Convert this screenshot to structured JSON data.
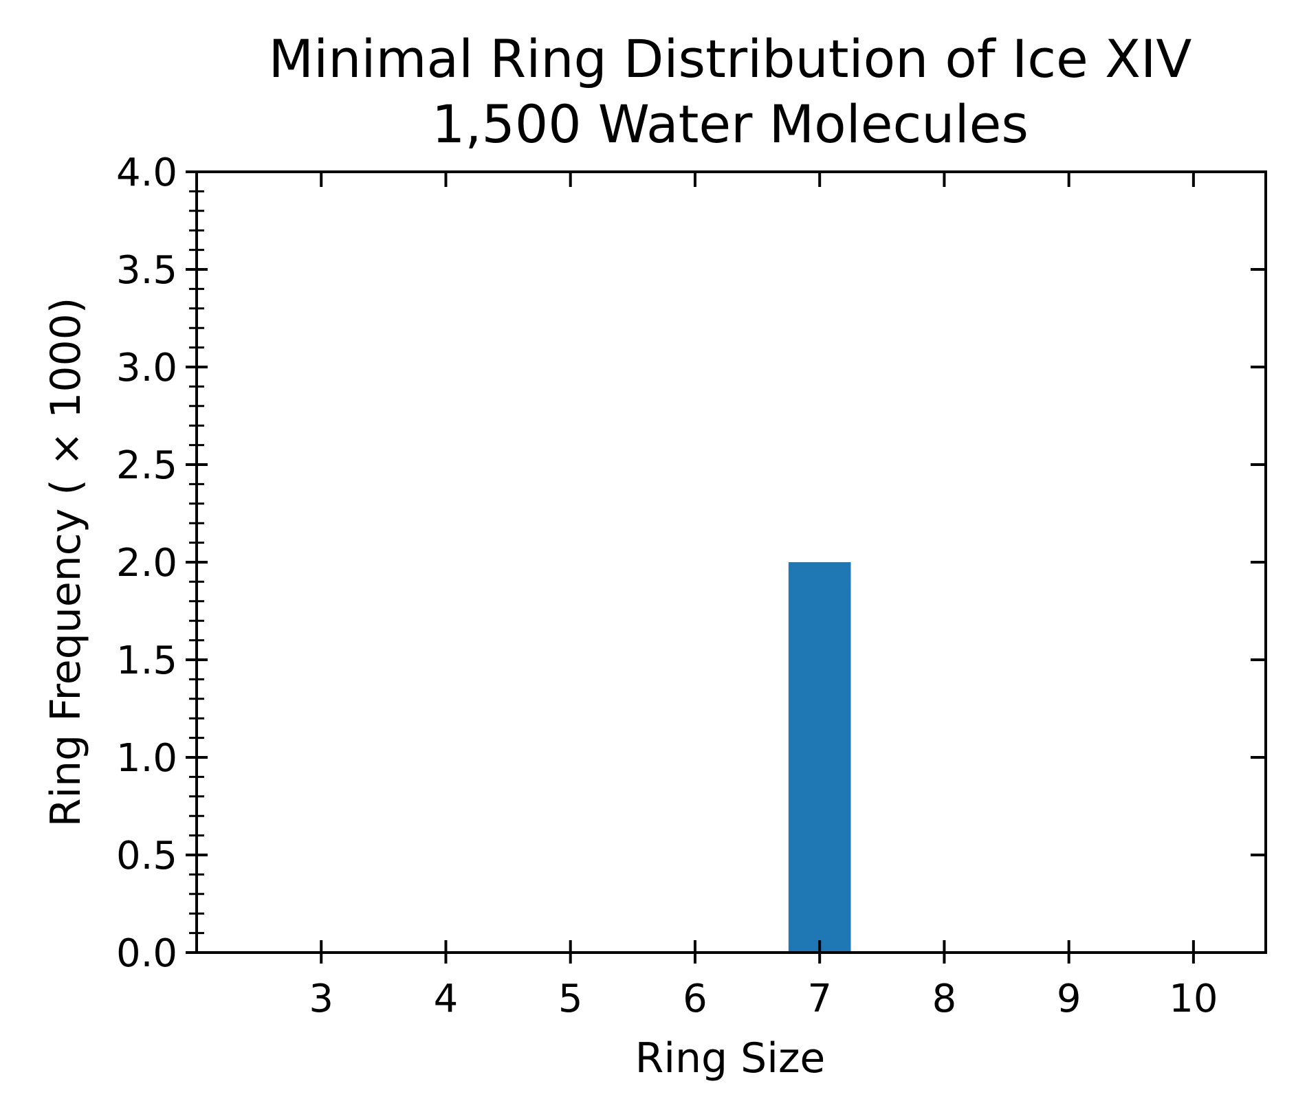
{
  "chart_data": {
    "type": "bar",
    "title_lines": [
      "Minimal Ring Distribution of Ice XIV",
      "1,500 Water Molecules"
    ],
    "xlabel": "Ring Size",
    "ylabel": "Ring Frequency ( × 1000)",
    "categories": [
      3,
      4,
      5,
      6,
      7,
      8,
      9,
      10
    ],
    "values": [
      0,
      0,
      0,
      0,
      2.0,
      0,
      0,
      0
    ],
    "bar_width": 0.5,
    "xlim": [
      2.0,
      10.58
    ],
    "ylim": [
      0,
      4.0
    ],
    "yticks": [
      0.0,
      0.5,
      1.0,
      1.5,
      2.0,
      2.5,
      3.0,
      3.5,
      4.0
    ],
    "ytick_labels": [
      "0.0",
      "0.5",
      "1.0",
      "1.5",
      "2.0",
      "2.5",
      "3.0",
      "3.5",
      "4.0"
    ],
    "xtick_labels": [
      "3",
      "4",
      "5",
      "6",
      "7",
      "8",
      "9",
      "10"
    ],
    "y_minor_step": 0.1,
    "bar_color": "#1f77b4",
    "grid": false,
    "legend": "none"
  }
}
